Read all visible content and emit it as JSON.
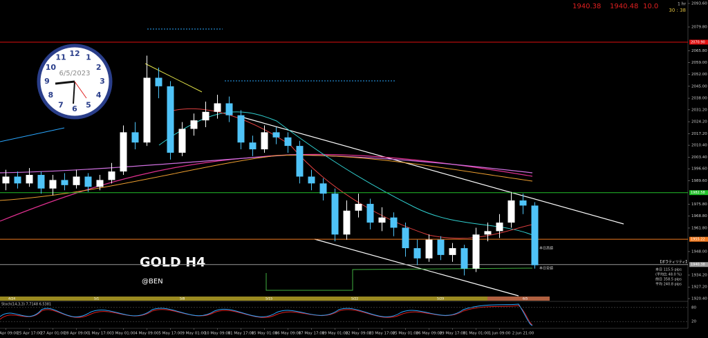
{
  "header": {
    "timeframe": "1 hr",
    "countdown": "30 : 38",
    "bid": "1940.38",
    "ask": "1940.48",
    "spread": "10.0"
  },
  "clock": {
    "date": "6/5/2023",
    "numerals": [
      "12",
      "1",
      "2",
      "3",
      "4",
      "5",
      "6",
      "7",
      "8",
      "9",
      "10",
      "11"
    ]
  },
  "panel": {
    "title": "【ボラティリティ】",
    "rows": [
      "本日 115.5 pips",
      "(平均比 48.0 %)",
      "前日 358.5 pips",
      "平均 240.8 pips"
    ],
    "high_label": "本日高値",
    "low_label": "本日安値"
  },
  "chart_data": {
    "type": "candlestick",
    "title": "GOLD H4",
    "subtitle": "@BEN",
    "categories": [
      "24 Apr 09:00",
      null,
      "25 Apr 17:00",
      null,
      "27 Apr 01:00",
      null,
      "28 Apr 09:00",
      null,
      "1 May 17:00",
      null,
      "3 May 01:00",
      null,
      "4 May 09:00",
      null,
      "5 May 17:00",
      null,
      "9 May 01:00",
      null,
      "10 May 09:00",
      null,
      "11 May 17:00",
      null,
      "15 May 01:00",
      null,
      "16 May 09:00",
      null,
      "17 May 17:00",
      null,
      "19 May 01:00",
      null,
      "22 May 09:00",
      null,
      "23 May 17:00",
      null,
      "25 May 01:00",
      null,
      "26 May 09:00",
      null,
      "29 May 17:00",
      null,
      "31 May 01:00",
      null,
      "1 Jun 09:00",
      null,
      "2 Jun 21:00",
      null
    ],
    "open": [
      1988,
      1992,
      1988,
      1993,
      1985,
      1990,
      1987,
      1992,
      1986,
      1990,
      1995,
      2018,
      2012,
      2050,
      2045,
      2006,
      2020,
      2025,
      2030,
      2035,
      2028,
      2012,
      2008,
      2018,
      2015,
      2010,
      1992,
      1988,
      1982,
      1958,
      1972,
      1976,
      1965,
      1968,
      1962,
      1950,
      1944,
      1955,
      1946,
      1950,
      1938,
      1958,
      1960,
      1965,
      1978,
      1975
    ],
    "high": [
      1996,
      1995,
      1997,
      1995,
      1993,
      1994,
      1996,
      1994,
      1993,
      2000,
      2022,
      2024,
      2063,
      2056,
      2048,
      2024,
      2029,
      2036,
      2040,
      2039,
      2031,
      2016,
      2022,
      2021,
      2018,
      2013,
      1996,
      1991,
      1985,
      1978,
      1982,
      1979,
      1974,
      1971,
      1965,
      1955,
      1958,
      1957,
      1953,
      1952,
      1962,
      1965,
      1970,
      1983,
      1982,
      1977
    ],
    "low": [
      1984,
      1985,
      1986,
      1982,
      1981,
      1984,
      1985,
      1983,
      1984,
      1988,
      1993,
      2008,
      2010,
      2038,
      2002,
      2004,
      2016,
      2021,
      2026,
      2024,
      2008,
      2004,
      2006,
      2011,
      2006,
      1988,
      1984,
      1978,
      1954,
      1955,
      1968,
      1961,
      1960,
      1957,
      1945,
      1940,
      1942,
      1943,
      1942,
      1934,
      1936,
      1954,
      1956,
      1962,
      1970,
      1938
    ],
    "close": [
      1992,
      1988,
      1993,
      1985,
      1990,
      1987,
      1992,
      1986,
      1990,
      1995,
      2018,
      2012,
      2050,
      2045,
      2006,
      2020,
      2025,
      2030,
      2035,
      2028,
      2012,
      2008,
      2018,
      2015,
      2010,
      1992,
      1988,
      1982,
      1958,
      1972,
      1976,
      1965,
      1968,
      1962,
      1950,
      1944,
      1955,
      1946,
      1950,
      1938,
      1958,
      1960,
      1965,
      1978,
      1975,
      1940
    ],
    "up_color": "#ffffff",
    "down_color": "#4fc3f7",
    "ylim": [
      1920.4,
      2093.6
    ],
    "yticks": [
      {
        "value": 2093.6,
        "label": "2093.60"
      },
      {
        "value": 2079.8,
        "label": "2079.80"
      },
      {
        "value": 2065.8,
        "label": "2065.80"
      },
      {
        "value": 2059,
        "label": "2059.00"
      },
      {
        "value": 2052,
        "label": "2052.00"
      },
      {
        "value": 2045,
        "label": "2045.00"
      },
      {
        "value": 2038,
        "label": "2038.00"
      },
      {
        "value": 2031.2,
        "label": "2031.20"
      },
      {
        "value": 2024.2,
        "label": "2024.20"
      },
      {
        "value": 2017.2,
        "label": "2017.20"
      },
      {
        "value": 2010.4,
        "label": "2010.40"
      },
      {
        "value": 2003.4,
        "label": "2003.40"
      },
      {
        "value": 1996.6,
        "label": "1996.60"
      },
      {
        "value": 1989.6,
        "label": "1989.60"
      },
      {
        "value": 1975.8,
        "label": "1975.80"
      },
      {
        "value": 1968.8,
        "label": "1968.80"
      },
      {
        "value": 1961.8,
        "label": "1961.80"
      },
      {
        "value": 1948,
        "label": "1948.00"
      },
      {
        "value": 1934.2,
        "label": "1934.20"
      },
      {
        "value": 1927.2,
        "label": "1927.20"
      },
      {
        "value": 1920.4,
        "label": "1920.40"
      }
    ],
    "levels": [
      {
        "value": 2070.9,
        "label": "2070.90",
        "color": "#e01010"
      },
      {
        "value": 1982.58,
        "label": "1982.58",
        "color": "#22c02a"
      },
      {
        "value": 1955.22,
        "label": "1955.22",
        "color": "#f07a20"
      },
      {
        "value": 1940.38,
        "label": "1940.38",
        "color": "#9a9a9a"
      }
    ],
    "week_labels": [
      "4/24",
      "5/1",
      "5/8",
      "5/15",
      "5/22",
      "5/29",
      "6/5"
    ],
    "indicator": "Stoch(14,3,3) 7.7148 6.5381",
    "indicator_ticks": [
      80,
      20
    ]
  }
}
